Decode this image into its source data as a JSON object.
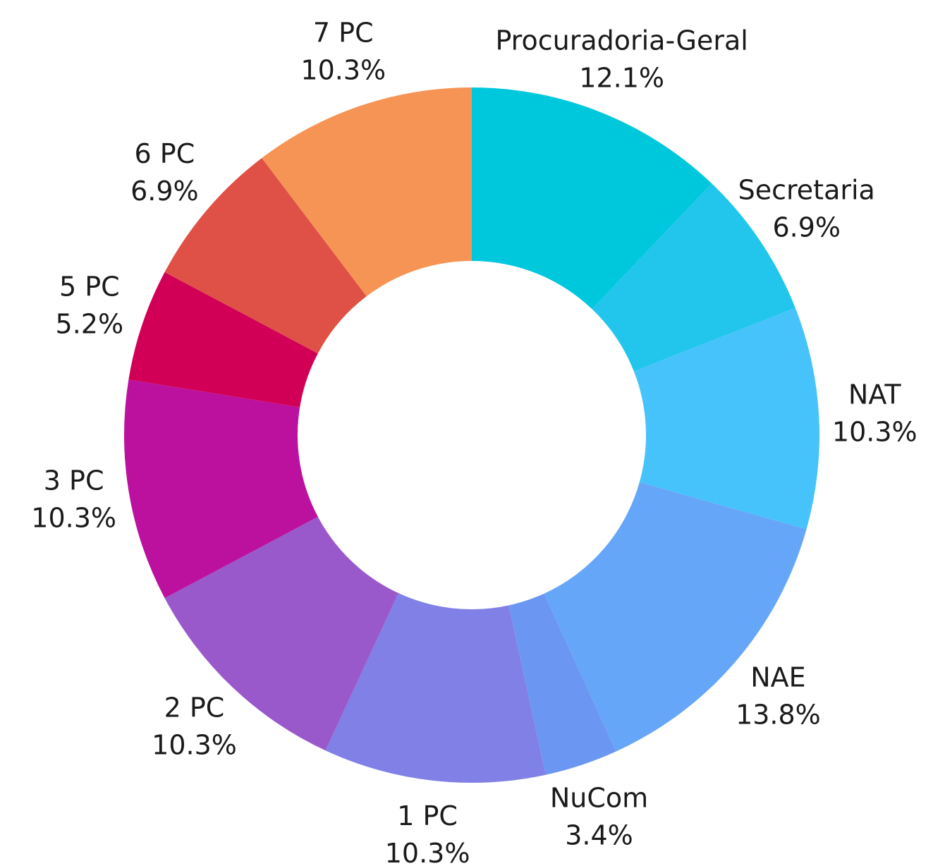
{
  "chart_data": {
    "type": "donut",
    "categories": [
      "Procuradoria-Geral",
      "Secretaria",
      "NAT",
      "NAE",
      "NuCom",
      "1 PC",
      "2 PC",
      "3 PC",
      "5 PC",
      "6 PC",
      "7 PC"
    ],
    "values": [
      12.1,
      6.9,
      10.3,
      13.8,
      3.4,
      10.3,
      10.3,
      10.3,
      5.2,
      6.9,
      10.3
    ],
    "value_labels": [
      "12.1%",
      "6.9%",
      "10.3%",
      "13.8%",
      "3.4%",
      "10.3%",
      "10.3%",
      "10.3%",
      "5.2%",
      "6.9%",
      "10.3%"
    ],
    "colors": [
      "#00c8dc",
      "#22c6ec",
      "#47c3fb",
      "#66a6f8",
      "#6b97f2",
      "#8080e6",
      "#9a59cb",
      "#bc109e",
      "#d10056",
      "#df5147",
      "#f59454"
    ]
  }
}
